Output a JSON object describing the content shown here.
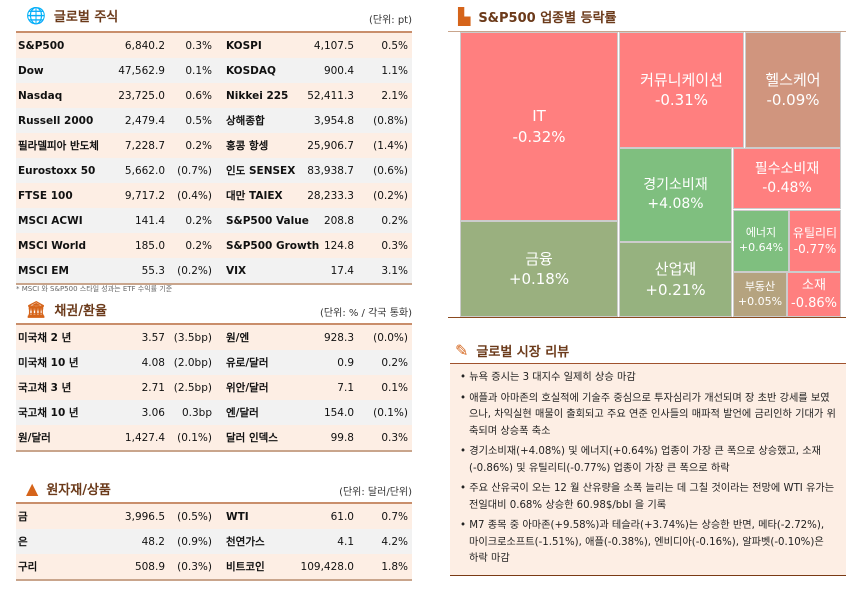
{
  "equities": {
    "title": "글로벌 주식",
    "unit": "(단위: pt)",
    "icon": "globe-icon",
    "rows": [
      [
        "S&P500",
        "6,840.2",
        "0.3%",
        "KOSPI",
        "4,107.5",
        "0.5%"
      ],
      [
        "Dow",
        "47,562.9",
        "0.1%",
        "KOSDAQ",
        "900.4",
        "1.1%"
      ],
      [
        "Nasdaq",
        "23,725.0",
        "0.6%",
        "Nikkei 225",
        "52,411.3",
        "2.1%"
      ],
      [
        "Russell 2000",
        "2,479.4",
        "0.5%",
        "상해종합",
        "3,954.8",
        "(0.8%)"
      ],
      [
        "필라델피아 반도체",
        "7,228.7",
        "0.2%",
        "홍콩 항셍",
        "25,906.7",
        "(1.4%)"
      ],
      [
        "Eurostoxx 50",
        "5,662.0",
        "(0.7%)",
        "인도 SENSEX",
        "83,938.7",
        "(0.6%)"
      ],
      [
        "FTSE 100",
        "9,717.2",
        "(0.4%)",
        "대만 TAIEX",
        "28,233.3",
        "(0.2%)"
      ],
      [
        "MSCI ACWI",
        "141.4",
        "0.2%",
        "S&P500 Value",
        "208.8",
        "0.2%"
      ],
      [
        "MSCI World",
        "185.0",
        "0.2%",
        "S&P500 Growth",
        "124.8",
        "0.3%"
      ],
      [
        "MSCI EM",
        "55.3",
        "(0.2%)",
        "VIX",
        "17.4",
        "3.1%"
      ]
    ],
    "note": "* MSCI 와 S&P500 스타일 성과는 ETF 수익률 기준"
  },
  "bonds": {
    "title": "채권/환율",
    "unit": "(단위: % / 각국 통화)",
    "icon": "bank-icon",
    "rows": [
      [
        "미국채 2 년",
        "3.57",
        "(3.5bp)",
        "원/엔",
        "928.3",
        "(0.0%)"
      ],
      [
        "미국채 10 년",
        "4.08",
        "(2.0bp)",
        "유로/달러",
        "0.9",
        "0.2%"
      ],
      [
        "국고채 3 년",
        "2.71",
        "(2.5bp)",
        "위안/달러",
        "7.1",
        "0.1%"
      ],
      [
        "국고채 10 년",
        "3.06",
        "0.3bp",
        "엔/달러",
        "154.0",
        "(0.1%)"
      ],
      [
        "원/달러",
        "1,427.4",
        "(0.1%)",
        "달러 인덱스",
        "99.8",
        "0.3%"
      ]
    ]
  },
  "commodities": {
    "title": "원자재/상품",
    "unit": "(단위: 달러/단위)",
    "icon": "gold-bars-icon",
    "rows": [
      [
        "금",
        "3,996.5",
        "(0.5%)",
        "WTI",
        "61.0",
        "0.7%"
      ],
      [
        "은",
        "48.2",
        "(0.9%)",
        "천연가스",
        "4.1",
        "4.2%"
      ],
      [
        "구리",
        "508.9",
        "(0.3%)",
        "비트코인",
        "109,428.0",
        "1.8%"
      ]
    ]
  },
  "treemap": {
    "title": "S&P500 업종별 등락률",
    "icon": "bar-chart-icon",
    "sectors": [
      {
        "name": "IT",
        "change": "-0.32%",
        "color": "#ff7f7f"
      },
      {
        "name": "커뮤니케이션",
        "change": "-0.31%",
        "color": "#ff7f7f"
      },
      {
        "name": "헬스케어",
        "change": "-0.09%",
        "color": "#d0957e"
      },
      {
        "name": "경기소비재",
        "change": "+4.08%",
        "color": "#7fbf7f"
      },
      {
        "name": "필수소비재",
        "change": "-0.48%",
        "color": "#ff7f7f"
      },
      {
        "name": "에너지",
        "change": "+0.64%",
        "color": "#7fbf7f"
      },
      {
        "name": "유틸리티",
        "change": "-0.77%",
        "color": "#ff7f7f"
      },
      {
        "name": "금융",
        "change": "+0.18%",
        "color": "#9ab07f"
      },
      {
        "name": "산업재",
        "change": "+0.21%",
        "color": "#96b27f"
      },
      {
        "name": "부동산",
        "change": "+0.05%",
        "color": "#b5a37f"
      },
      {
        "name": "소재",
        "change": "-0.86%",
        "color": "#ff7f7f"
      }
    ]
  },
  "review": {
    "title": "글로벌 시장 리뷰",
    "icon": "pencil-icon",
    "items": [
      "뉴욕 증시는 3 대지수 일제히 상승 마감",
      "애플과 아마존의 호실적에 기술주 중심으로 투자심리가 개선되며 장 초반 강세를 보였으나, 차익실현 매물이 출회되고 주요 연준 인사들의 매파적 발언에 금리인하 기대가 위축되며 상승폭 축소",
      "경기소비재(+4.08%) 및 에너지(+0.64%) 업종이 가장 큰 폭으로 상승했고, 소재(-0.86%) 및 유틸리티(-0.77%) 업종이 가장 큰 폭으로 하락",
      "주요 산유국이 오는 12 월 산유량을 소폭 늘리는 데 그칠 것이라는 전망에 WTI 유가는 전일대비 0.68% 상승한 60.98$/bbl 을 기록",
      "M7 종목 중 아마존(+9.58%)과 테슬라(+3.74%)는 상승한 반면, 메타(-2.72%), 마이크로소프트(-1.51%), 애플(-0.38%), 엔비디아(-0.16%), 알파벳(-0.10%)은 하락 마감"
    ]
  }
}
